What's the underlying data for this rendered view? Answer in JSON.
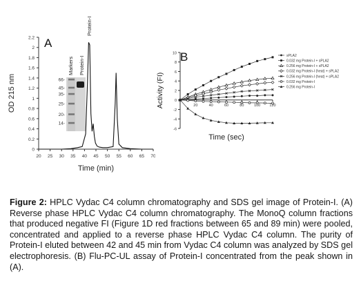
{
  "chart_data": [
    {
      "type": "line",
      "panel_label": "A",
      "ylabel": "OD 215 nm",
      "xlabel": "Time (min)",
      "xlim": [
        20,
        70
      ],
      "ylim": [
        0,
        2.2
      ],
      "xticks": [
        20,
        25,
        30,
        35,
        40,
        45,
        50,
        55,
        60,
        65,
        70
      ],
      "yticks": [
        0,
        0.2,
        0.4,
        0.6,
        0.8,
        1,
        1.2,
        1.4,
        1.6,
        1.8,
        2,
        2.2
      ],
      "peak_label": "Protein-I",
      "series": [
        {
          "x": [
            20,
            30,
            34,
            37,
            39,
            40.5,
            41.3,
            41.8,
            42.3,
            42.8,
            43.3,
            43.8,
            44.3,
            44.8,
            45.5,
            46.5,
            48,
            50,
            52.5,
            53.4,
            53.8,
            54.3,
            55,
            56.5,
            60,
            65,
            70
          ],
          "y": [
            0,
            0,
            0.01,
            0.03,
            0.05,
            0.3,
            1.3,
            2.1,
            2.05,
            0.7,
            0.35,
            0.5,
            0.25,
            0.12,
            0.06,
            0.04,
            0.03,
            0.03,
            0.05,
            0.9,
            1.5,
            0.6,
            0.1,
            0.03,
            0.01,
            0,
            0
          ]
        }
      ],
      "inset_gel": {
        "lane_labels": [
          "Markers",
          "Protein-I"
        ],
        "marker_kda": [
          "66-",
          "45-",
          "35-",
          "25-",
          "20-",
          "14-"
        ],
        "marker_fractions": [
          0.0,
          0.17,
          0.3,
          0.5,
          0.72,
          0.9
        ]
      }
    },
    {
      "type": "line",
      "panel_label": "B",
      "ylabel": "Activity (FI)",
      "xlabel": "Time (sec)",
      "xlim": [
        0,
        120
      ],
      "ylim": [
        -6,
        10
      ],
      "xticks": [
        20,
        40,
        60,
        80,
        100,
        120
      ],
      "yticks": [
        10,
        8,
        6,
        4,
        2,
        0,
        -2,
        -4,
        -6
      ],
      "x": [
        0,
        10,
        20,
        30,
        40,
        50,
        60,
        70,
        80,
        90,
        100,
        110,
        120
      ],
      "series": [
        {
          "name": "sPLA2",
          "marker": "circle",
          "y": [
            0,
            0.1,
            0.2,
            0.3,
            0.4,
            0.5,
            0.6,
            0.7,
            0.8,
            0.9,
            0.9,
            1.0,
            1.0
          ]
        },
        {
          "name": "0.032 mg Protein-I + sPLA2",
          "marker": "square",
          "y": [
            0,
            1.2,
            2.2,
            3.1,
            4.0,
            4.8,
            5.5,
            6.3,
            7.0,
            7.6,
            8.2,
            8.6,
            9.0
          ]
        },
        {
          "name": "0.256 mg Protein-I + sPLA2",
          "marker": "triangle",
          "y": [
            0,
            0.6,
            1.2,
            1.7,
            2.2,
            2.7,
            3.1,
            3.5,
            3.8,
            4.1,
            4.3,
            4.5,
            4.6
          ]
        },
        {
          "name": "0.032 mg Protein-I (heat) + sPLA2",
          "marker": "diamond",
          "y": [
            0,
            0.5,
            0.9,
            1.3,
            1.7,
            2.1,
            2.4,
            2.7,
            3.0,
            3.2,
            3.4,
            3.6,
            3.7
          ]
        },
        {
          "name": "0.256 mg Protein-I (heat) + sPLA2",
          "marker": "cross",
          "y": [
            0,
            0.3,
            0.6,
            0.8,
            1.0,
            1.2,
            1.4,
            1.6,
            1.8,
            1.9,
            2.0,
            2.1,
            2.2
          ]
        },
        {
          "name": "0.032 mg Protein-I",
          "marker": "circle-open",
          "y": [
            0,
            -0.1,
            -0.2,
            -0.3,
            -0.35,
            -0.4,
            -0.45,
            -0.5,
            -0.55,
            -0.6,
            -0.6,
            -0.65,
            -0.7
          ]
        },
        {
          "name": "0.256 mg Protein-I",
          "marker": "triangle-filled",
          "y": [
            0,
            -1.8,
            -3.0,
            -3.8,
            -4.3,
            -4.6,
            -4.8,
            -4.9,
            -4.9,
            -4.9,
            -4.85,
            -4.8,
            -4.8
          ]
        }
      ]
    }
  ],
  "caption": {
    "label": "Figure 2:",
    "text": "HPLC Vydac C4 column chromatography and SDS gel image of Protein-I. (A) Reverse phase HPLC Vydac C4 column chromatography. The MonoQ column fractions that produced negative FI (Figure 1D red fractions between 65 and 89 min) were pooled, concentrated and applied to a reverse phase HPLC Vydac C4 column. The purity of Protein-I eluted between 42 and 45 min from Vydac C4 column was analyzed by SDS gel electrophoresis. (B) Flu-PC-UL assay of Protein-I concentrated from the peak shown in (A)."
  }
}
